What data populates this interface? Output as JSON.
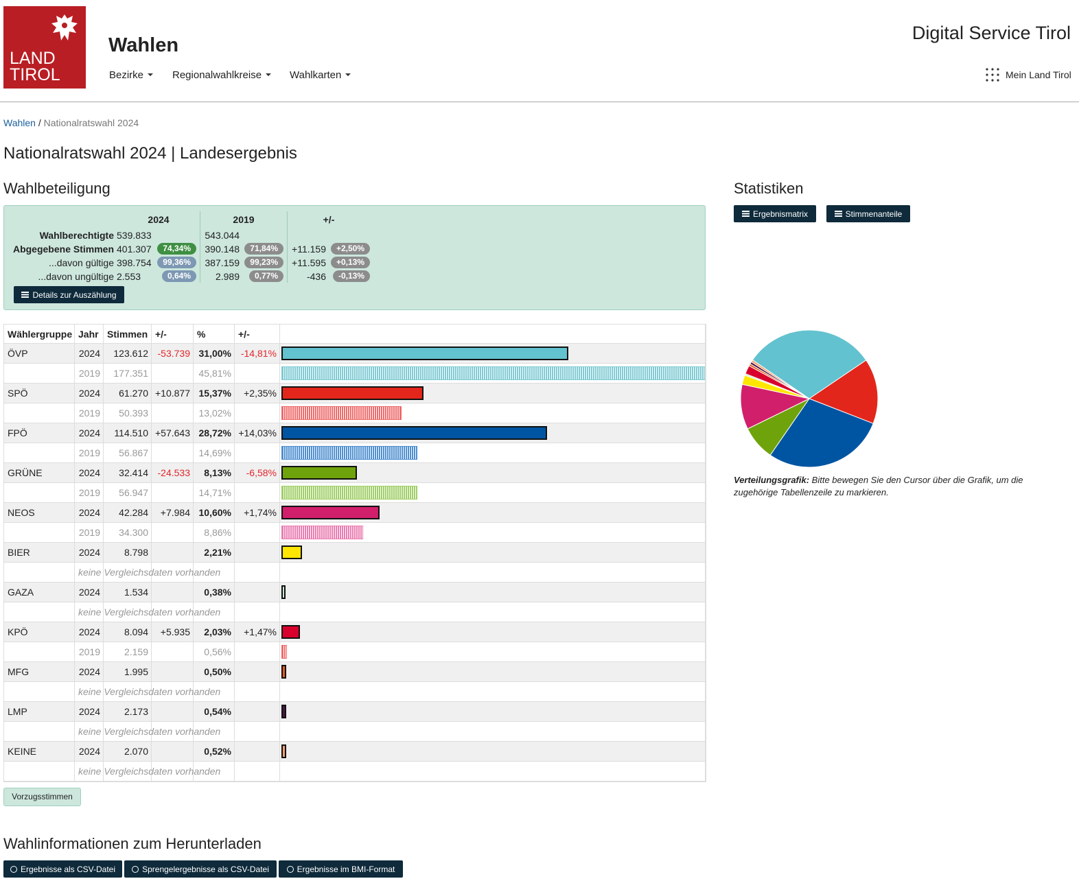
{
  "header": {
    "logo": [
      "LAND",
      "TIROL"
    ],
    "title": "Wahlen",
    "nav": [
      "Bezirke",
      "Regionalwahlkreise",
      "Wahlkarten"
    ],
    "service": "Digital Service Tirol",
    "account": "Mein Land Tirol"
  },
  "breadcrumb": {
    "items": [
      "Wahlen",
      "Nationalratswahl 2024"
    ],
    "separator": "/"
  },
  "page_title": "Nationalratswahl 2024 | Landesergebnis",
  "turnout": {
    "title": "Wahlbeteiligung",
    "columns": [
      "2024",
      "2019",
      "+/-"
    ],
    "rows": [
      {
        "label": "Wahlberechtigte",
        "v2024": "539.833",
        "v2019": "543.044"
      },
      {
        "label": "Abgegebene Stimmen",
        "v2024": "401.307",
        "b2024": {
          "text": "74,34%",
          "color": "#3f8f43"
        },
        "v2019": "390.148",
        "b2019": {
          "text": "71,84%",
          "color": "#8c8c8c"
        },
        "diff": "+11.159",
        "bdiff": {
          "text": "+2,50%",
          "color": "#8c8c8c"
        }
      },
      {
        "label": "...davon gültige",
        "v2024": "398.754",
        "b2024": {
          "text": "99,36%",
          "color": "#7d98b3"
        },
        "v2019": "387.159",
        "b2019": {
          "text": "99,23%",
          "color": "#8c8c8c"
        },
        "diff": "+11.595",
        "bdiff": {
          "text": "+0,13%",
          "color": "#8c8c8c"
        }
      },
      {
        "label": "...davon ungültige",
        "v2024": "2.553",
        "b2024": {
          "text": "0,64%",
          "color": "#7d98b3"
        },
        "v2019": "2.989",
        "b2019": {
          "text": "0,77%",
          "color": "#8c8c8c"
        },
        "diff": "-436",
        "bdiff": {
          "text": "-0,13%",
          "color": "#8c8c8c"
        }
      }
    ],
    "button": "Details zur Auszählung"
  },
  "results": {
    "columns": [
      "Wählergruppe",
      "Jahr",
      "Stimmen",
      "+/-",
      "%",
      "+/-"
    ],
    "parties": [
      {
        "name": "ÖVP",
        "color": "#63c2cf",
        "color2019": "#7fcbd4",
        "y2024": {
          "year": "2024",
          "votes": "123.612",
          "diff": "-53.739",
          "pct": "31,00%",
          "pdiff": "-14,81%"
        },
        "y2019": {
          "year": "2019",
          "votes": "177.351",
          "pct": "45,81%"
        }
      },
      {
        "name": "SPÖ",
        "color": "#e3261b",
        "color2019": "#ee6b6b",
        "y2024": {
          "year": "2024",
          "votes": "61.270",
          "diff": "+10.877",
          "pct": "15,37%",
          "pdiff": "+2,35%"
        },
        "y2019": {
          "year": "2019",
          "votes": "50.393",
          "pct": "13,02%"
        }
      },
      {
        "name": "FPÖ",
        "color": "#0055a3",
        "color2019": "#4f8fd0",
        "y2024": {
          "year": "2024",
          "votes": "114.510",
          "diff": "+57.643",
          "pct": "28,72%",
          "pdiff": "+14,03%"
        },
        "y2019": {
          "year": "2019",
          "votes": "56.867",
          "pct": "14,69%"
        }
      },
      {
        "name": "GRÜNE",
        "color": "#6fa30b",
        "color2019": "#9fcf66",
        "y2024": {
          "year": "2024",
          "votes": "32.414",
          "diff": "-24.533",
          "pct": "8,13%",
          "pdiff": "-6,58%"
        },
        "y2019": {
          "year": "2019",
          "votes": "56.947",
          "pct": "14,71%"
        }
      },
      {
        "name": "NEOS",
        "color": "#d21f6b",
        "color2019": "#e97cb0",
        "y2024": {
          "year": "2024",
          "votes": "42.284",
          "diff": "+7.984",
          "pct": "10,60%",
          "pdiff": "+1,74%"
        },
        "y2019": {
          "year": "2019",
          "votes": "34.300",
          "pct": "8,86%"
        }
      },
      {
        "name": "BIER",
        "color": "#ffe600",
        "y2024": {
          "year": "2024",
          "votes": "8.798",
          "pct": "2,21%"
        },
        "note": "keine Vergleichsdaten vorhanden"
      },
      {
        "name": "GAZA",
        "color": "#c8ecd0",
        "y2024": {
          "year": "2024",
          "votes": "1.534",
          "pct": "0,38%"
        },
        "note": "keine Vergleichsdaten vorhanden"
      },
      {
        "name": "KPÖ",
        "color": "#d8002c",
        "color2019": "#ee6b6b",
        "y2024": {
          "year": "2024",
          "votes": "8.094",
          "diff": "+5.935",
          "pct": "2,03%",
          "pdiff": "+1,47%"
        },
        "y2019": {
          "year": "2019",
          "votes": "2.159",
          "pct": "0,56%"
        }
      },
      {
        "name": "MFG",
        "color": "#e85a1c",
        "y2024": {
          "year": "2024",
          "votes": "1.995",
          "pct": "0,50%"
        },
        "note": "keine Vergleichsdaten vorhanden"
      },
      {
        "name": "LMP",
        "color": "#4b1747",
        "y2024": {
          "year": "2024",
          "votes": "2.173",
          "pct": "0,54%"
        },
        "note": "keine Vergleichsdaten vorhanden"
      },
      {
        "name": "KEINE",
        "color": "#f4a070",
        "y2024": {
          "year": "2024",
          "votes": "2.070",
          "pct": "0,52%"
        },
        "note": "keine Vergleichsdaten vorhanden"
      }
    ],
    "button": "Vorzugsstimmen"
  },
  "stats": {
    "title": "Statistiken",
    "buttons": [
      "Ergebnismatrix",
      "Stimmenanteile"
    ],
    "caption_bold": "Verteilungsgrafik:",
    "caption": "Bitte bewegen Sie den Cursor über die Grafik, um die zugehörige Tabellenzeile zu markieren."
  },
  "downloads": {
    "title": "Wahlinformationen zum Herunterladen",
    "buttons": [
      "Ergebnisse als CSV-Datei",
      "Sprengelergebnisse als CSV-Datei",
      "Ergebnisse im BMI-Format"
    ]
  }
}
